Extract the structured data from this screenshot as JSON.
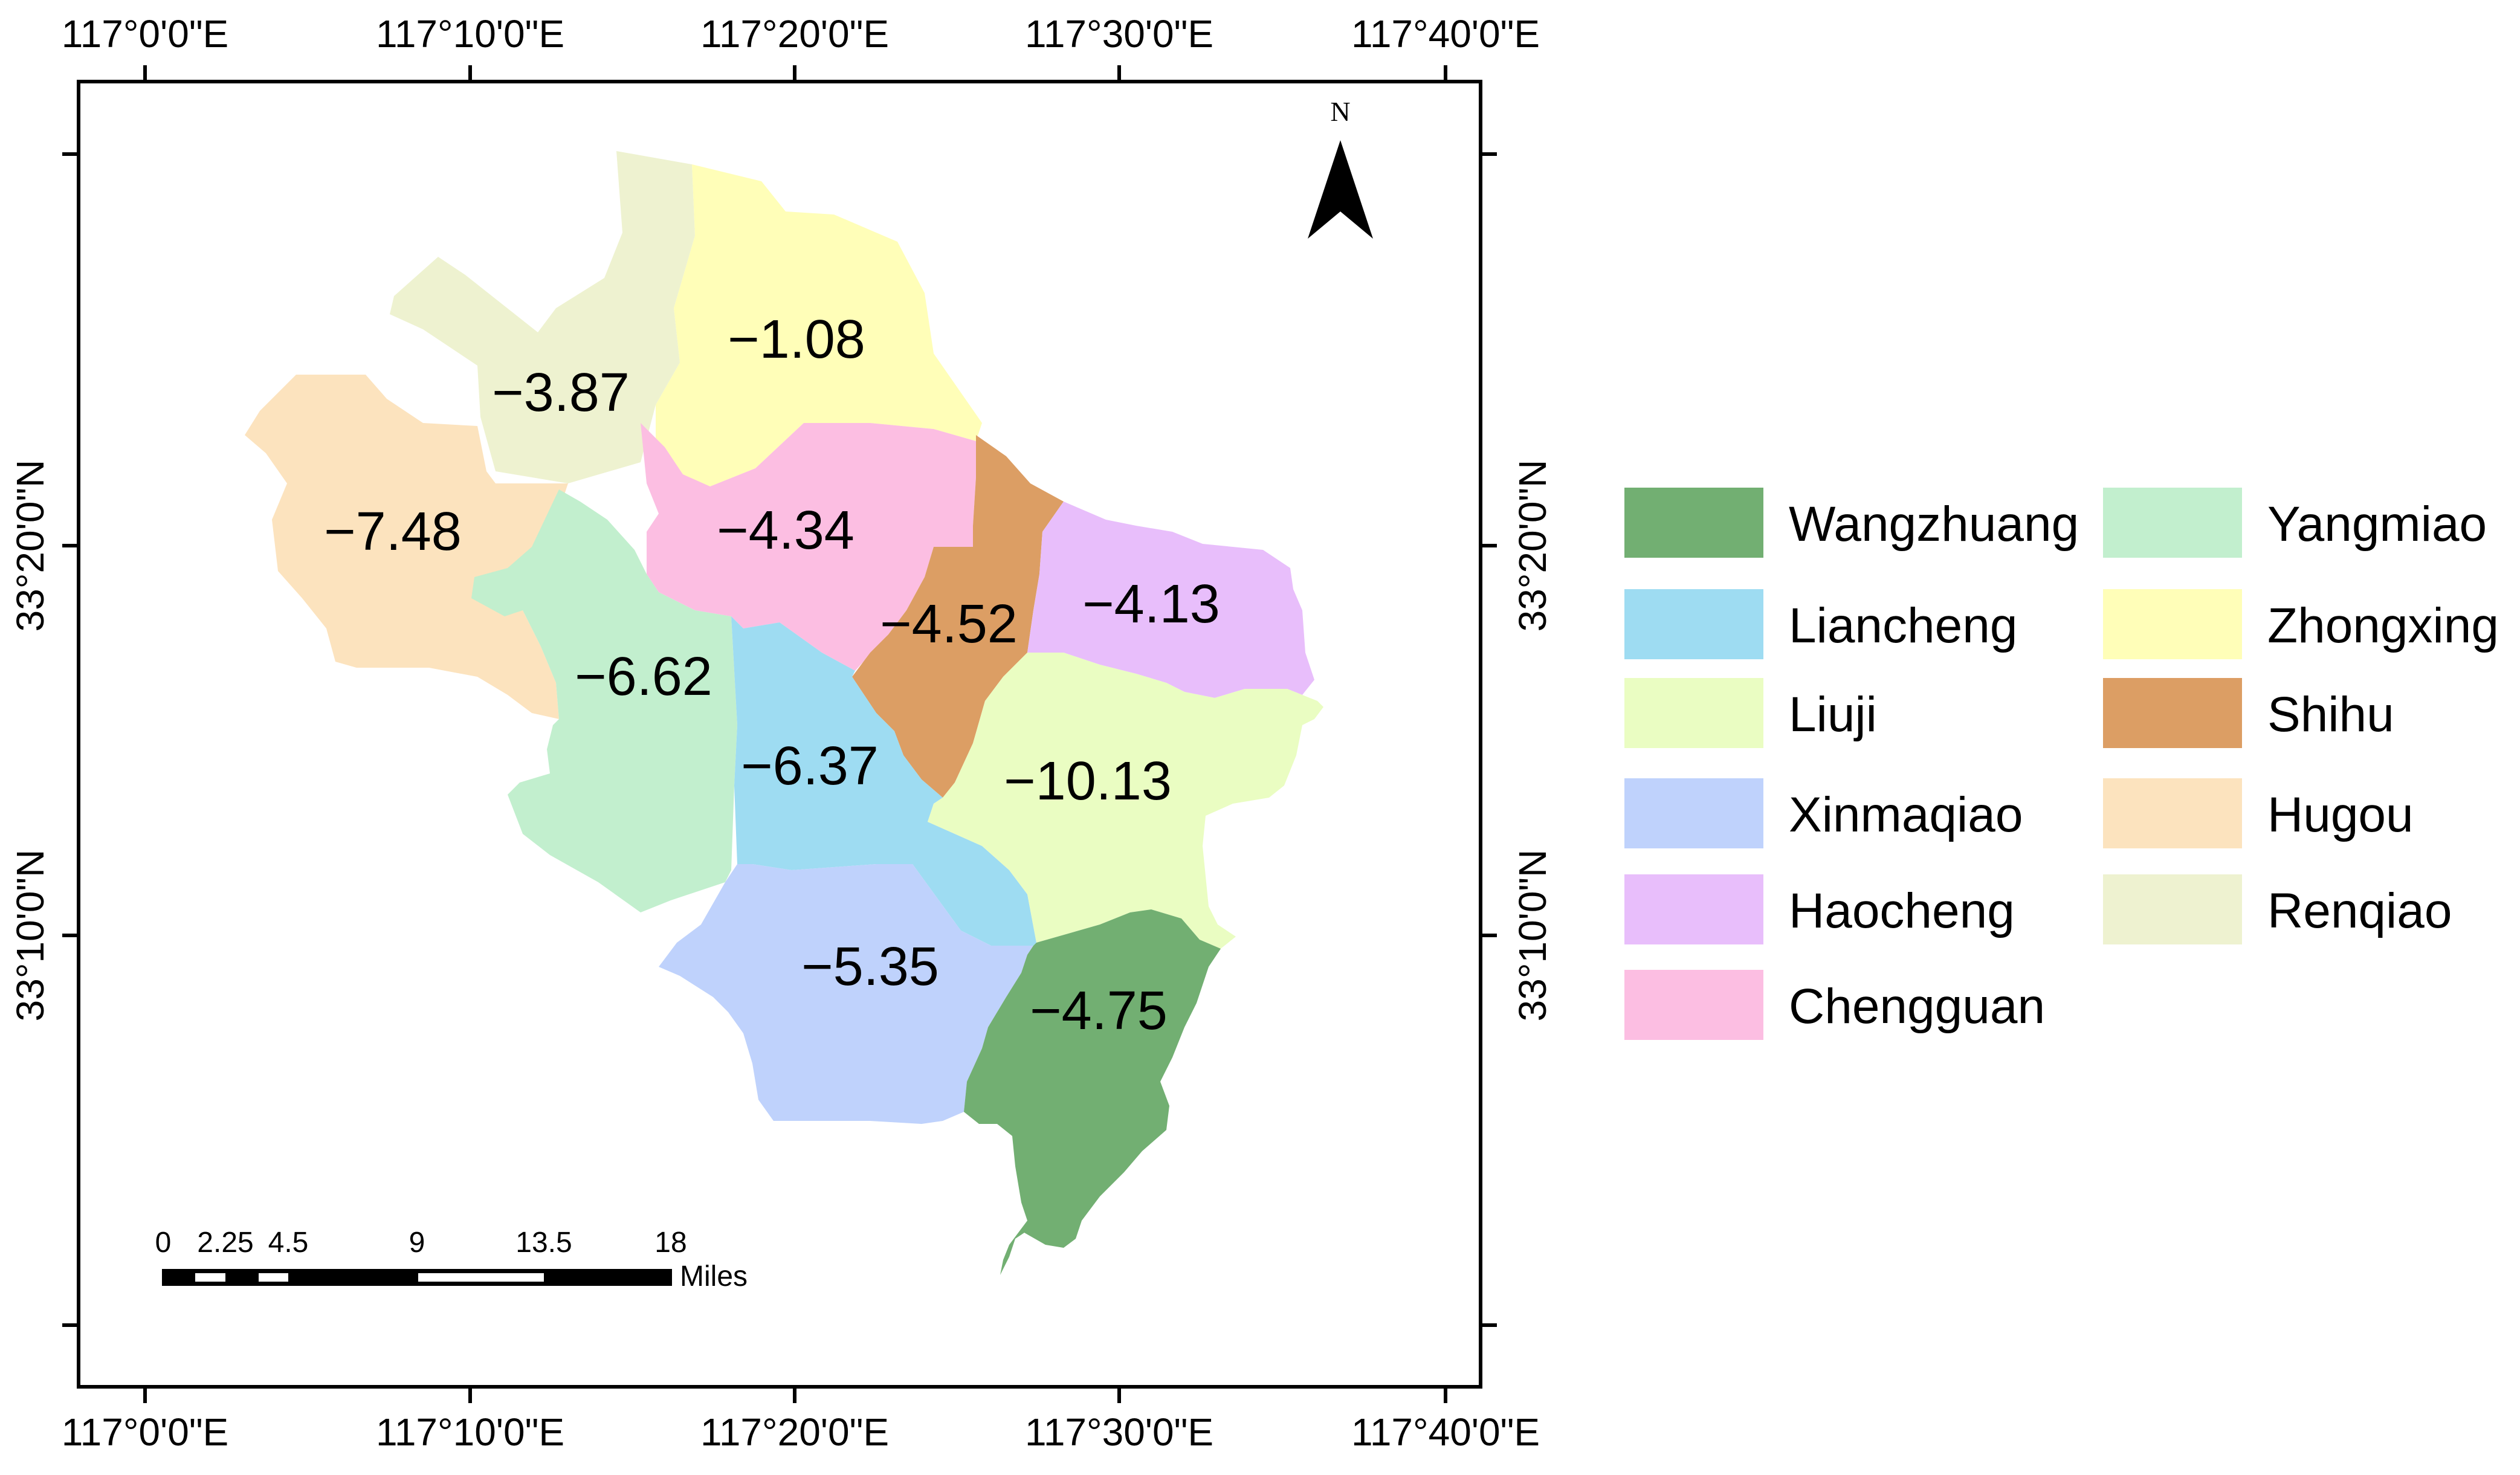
{
  "map": {
    "longitude_labels": [
      "117°0'0\"E",
      "117°10'0\"E",
      "117°20'0\"E",
      "117°30'0\"E",
      "117°40'0\"E"
    ],
    "latitude_labels": [
      "33°20'0\"N",
      "33°10'0\"N"
    ],
    "north_arrow_label": "N",
    "scale_bar": {
      "labels": [
        "0",
        "2.25",
        "4.5",
        "9",
        "13.5",
        "18"
      ],
      "unit": "Miles"
    },
    "districts": [
      {
        "id": "renqiao",
        "name": "Renqiao",
        "value": "−3.87",
        "color": "#EEF2D0"
      },
      {
        "id": "zhongxing",
        "name": "Zhongxing",
        "value": "−1.08",
        "color": "#FFFEB8"
      },
      {
        "id": "hugou",
        "name": "Hugou",
        "value": "−7.48",
        "color": "#FCE3BE"
      },
      {
        "id": "chengguan",
        "name": "Chengguan",
        "value": "−4.34",
        "color": "#FCBEE2"
      },
      {
        "id": "shihu",
        "name": "Shihu",
        "value": "−4.52",
        "color": "#DC9E64"
      },
      {
        "id": "haocheng",
        "name": "Haocheng",
        "value": "−4.13",
        "color": "#E8BEFB"
      },
      {
        "id": "yangmiao",
        "name": "Yangmiao",
        "value": "−6.62",
        "color": "#C2EFCE"
      },
      {
        "id": "liancheng",
        "name": "Liancheng",
        "value": "−6.37",
        "color": "#9EDCF2"
      },
      {
        "id": "liuji",
        "name": "Liuji",
        "value": "−10.13",
        "color": "#EAFDC2"
      },
      {
        "id": "xinmaqiao",
        "name": "Xinmaqiao",
        "value": "−5.35",
        "color": "#BFD2FC"
      },
      {
        "id": "wangzhuang",
        "name": "Wangzhuang",
        "value": "−4.75",
        "color": "#72AF72"
      }
    ]
  },
  "legend": {
    "items": [
      {
        "label": "Wangzhuang",
        "color": "#72AF72"
      },
      {
        "label": "Liancheng",
        "color": "#9EDCF2"
      },
      {
        "label": "Liuji",
        "color": "#EAFDC2"
      },
      {
        "label": "Xinmaqiao",
        "color": "#BFD2FC"
      },
      {
        "label": "Haocheng",
        "color": "#E8BEFB"
      },
      {
        "label": "Chengguan",
        "color": "#FCBEE2"
      },
      {
        "label": "Yangmiao",
        "color": "#C2EFCE"
      },
      {
        "label": "Zhongxing",
        "color": "#FFFEB8"
      },
      {
        "label": "Shihu",
        "color": "#DC9E64"
      },
      {
        "label": "Hugou",
        "color": "#FCE3BE"
      },
      {
        "label": "Renqiao",
        "color": "#EEF2D0"
      }
    ]
  }
}
